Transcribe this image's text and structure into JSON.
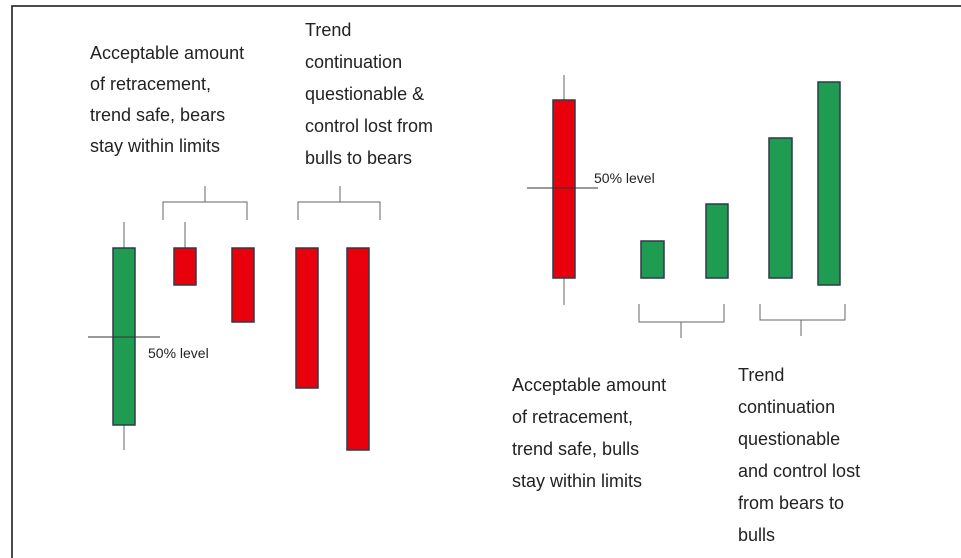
{
  "left_panel": {
    "level_label": "50% level",
    "note_retracement": [
      "Acceptable amount",
      "of retracement,",
      "trend safe, bears",
      "stay within limits"
    ],
    "note_continuation": [
      "Trend",
      "continuation",
      "questionable &",
      "control lost from",
      "bulls to bears"
    ]
  },
  "right_panel": {
    "level_label": "50% level",
    "note_retracement": [
      "Acceptable amount",
      "of retracement,",
      "trend safe, bulls",
      "stay within limits"
    ],
    "note_continuation": [
      "Trend",
      "continuation",
      "questionable",
      "and control lost",
      "from bears to",
      "bulls"
    ]
  }
}
